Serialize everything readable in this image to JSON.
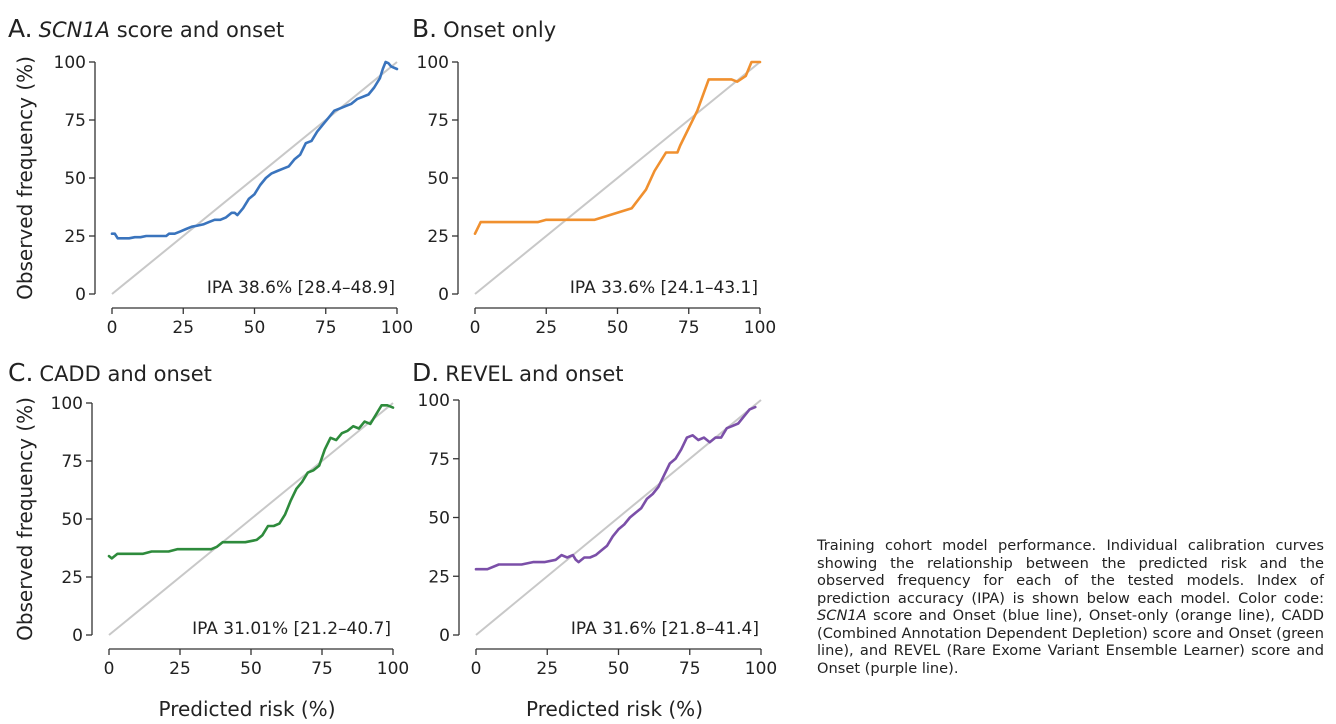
{
  "caption": {
    "parts": [
      {
        "text": "Training cohort model performance. Individual calibration curves showing the relationship between the predicted risk and the observed frequency for each of the tested models. Index of prediction accuracy (IPA) is shown below each model. Color code: ",
        "italic": false
      },
      {
        "text": "SCN1A",
        "italic": true
      },
      {
        "text": " score and Onset (blue line), Onset-only (orange line), CADD (Combined Annotation Dependent Depletion) score and Onset (green line), and REVEL (Rare Exome Variant Ensemble Learner) score and Onset (purple line).",
        "italic": false
      }
    ]
  },
  "colors": {
    "reference_line": "#c8c8c8",
    "axis": "#333333"
  },
  "chart_data": [
    {
      "type": "line",
      "panel_letter": "A.",
      "title_parts": [
        {
          "text": "SCN1A",
          "italic": true
        },
        {
          "text": " score and onset",
          "italic": false
        }
      ],
      "ylabel": "Observed frequency (%)",
      "xlabel": "",
      "annotation": "IPA 38.6% [28.4–48.9]",
      "xlim": [
        0,
        100
      ],
      "ylim": [
        0,
        100
      ],
      "xticks": [
        0,
        25,
        50,
        75,
        100
      ],
      "yticks": [
        0,
        25,
        50,
        75,
        100
      ],
      "grid": false,
      "color": "#3a74bd",
      "reference_line": [
        [
          0,
          0
        ],
        [
          100,
          100
        ]
      ],
      "x": [
        0,
        1,
        2,
        4,
        6,
        8,
        10,
        12,
        14,
        16,
        18,
        19,
        20,
        22,
        24,
        26,
        28,
        30,
        32,
        34,
        36,
        38,
        40,
        42,
        43,
        44,
        46,
        48,
        50,
        52,
        54,
        56,
        58,
        60,
        62,
        64,
        66,
        68,
        70,
        72,
        74,
        76,
        78,
        80,
        82,
        84,
        86,
        88,
        90,
        92,
        94,
        95,
        96,
        97,
        98,
        100
      ],
      "y": [
        26,
        26,
        24,
        24,
        24,
        24.5,
        24.5,
        25,
        25,
        25,
        25,
        25,
        26,
        26,
        27,
        28,
        29,
        29.5,
        30,
        31,
        32,
        32,
        33,
        35,
        35,
        34,
        37,
        41,
        43,
        47,
        50,
        52,
        53,
        54,
        55,
        58,
        60,
        65,
        66,
        70,
        73,
        76,
        79,
        80,
        81,
        82,
        84,
        85,
        86,
        89,
        93,
        97,
        100,
        99.5,
        98,
        97
      ]
    },
    {
      "type": "line",
      "panel_letter": "B.",
      "title_parts": [
        {
          "text": "Onset only",
          "italic": false
        }
      ],
      "ylabel": "",
      "xlabel": "",
      "annotation": "IPA 33.6% [24.1–43.1]",
      "xlim": [
        0,
        100
      ],
      "ylim": [
        0,
        100
      ],
      "xticks": [
        0,
        25,
        50,
        75,
        100
      ],
      "yticks": [
        0,
        25,
        50,
        75,
        100
      ],
      "grid": false,
      "color": "#f0902f",
      "reference_line": [
        [
          0,
          0
        ],
        [
          100,
          100
        ]
      ],
      "x": [
        0,
        2,
        22,
        25,
        42,
        55,
        60,
        63,
        67,
        71,
        72,
        78,
        82,
        90,
        92,
        95,
        97,
        100
      ],
      "y": [
        26,
        31,
        31,
        32,
        32,
        37,
        45,
        53,
        61,
        61,
        64,
        79,
        92.5,
        92.5,
        91.5,
        94,
        100,
        100
      ]
    },
    {
      "type": "line",
      "panel_letter": "C.",
      "title_parts": [
        {
          "text": "CADD and onset",
          "italic": false
        }
      ],
      "ylabel": "Observed frequency (%)",
      "xlabel": "Predicted risk (%)",
      "annotation": "IPA 31.01% [21.2–40.7]",
      "xlim": [
        0,
        100
      ],
      "ylim": [
        0,
        100
      ],
      "xticks": [
        0,
        25,
        50,
        75,
        100
      ],
      "yticks": [
        0,
        25,
        50,
        75,
        100
      ],
      "grid": false,
      "color": "#2e8b3c",
      "reference_line": [
        [
          0,
          0
        ],
        [
          100,
          100
        ]
      ],
      "x": [
        0,
        1,
        3,
        5,
        8,
        12,
        15,
        18,
        21,
        24,
        27,
        30,
        33,
        36,
        38,
        40,
        44,
        48,
        52,
        54,
        56,
        58,
        60,
        62,
        64,
        66,
        68,
        70,
        72,
        74,
        76,
        78,
        80,
        82,
        84,
        86,
        88,
        90,
        92,
        94,
        96,
        98,
        100
      ],
      "y": [
        34,
        33,
        35,
        35,
        35,
        35,
        36,
        36,
        36,
        37,
        37,
        37,
        37,
        37,
        38,
        40,
        40,
        40,
        41,
        43,
        47,
        47,
        48,
        52,
        58,
        63,
        66,
        70,
        71,
        73,
        80,
        85,
        84,
        87,
        88,
        90,
        89,
        92,
        91,
        95,
        99,
        99,
        98
      ]
    },
    {
      "type": "line",
      "panel_letter": "D.",
      "title_parts": [
        {
          "text": "REVEL and onset",
          "italic": false
        }
      ],
      "ylabel": "",
      "xlabel": "Predicted risk (%)",
      "annotation": "IPA 31.6% [21.8–41.4]",
      "xlim": [
        0,
        100
      ],
      "ylim": [
        0,
        100
      ],
      "xticks": [
        0,
        25,
        50,
        75,
        100
      ],
      "yticks": [
        0,
        25,
        50,
        75,
        100
      ],
      "grid": false,
      "color": "#7b4fa8",
      "reference_line": [
        [
          0,
          0
        ],
        [
          100,
          100
        ]
      ],
      "x": [
        0,
        2,
        4,
        8,
        12,
        16,
        20,
        24,
        28,
        30,
        32,
        34,
        35,
        36,
        38,
        40,
        42,
        44,
        46,
        48,
        50,
        52,
        54,
        56,
        58,
        60,
        62,
        64,
        66,
        68,
        70,
        72,
        74,
        76,
        78,
        80,
        82,
        84,
        86,
        88,
        90,
        92,
        94,
        96,
        98
      ],
      "y": [
        28,
        28,
        28,
        30,
        30,
        30,
        31,
        31,
        32,
        34,
        33,
        34,
        32,
        31,
        33,
        33,
        34,
        36,
        38,
        42,
        45,
        47,
        50,
        52,
        54,
        58,
        60,
        63,
        68,
        73,
        75,
        79,
        84,
        85,
        83,
        84,
        82,
        84,
        84,
        88,
        89,
        90,
        93,
        96,
        97
      ]
    }
  ]
}
